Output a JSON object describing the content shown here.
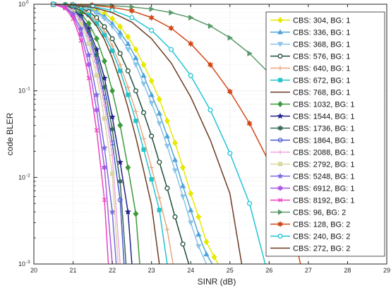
{
  "chart_data": {
    "type": "line",
    "xlabel": "SINR (dB)",
    "ylabel": "code BLER",
    "xlim": [
      20,
      29
    ],
    "ylim": [
      0.001,
      1
    ],
    "yscale": "log",
    "grid": true,
    "legend_position": "right",
    "x_ticks": [
      20,
      21,
      22,
      23,
      24,
      25,
      26,
      27,
      28,
      29
    ],
    "x_tick_labels": [
      "20",
      "21",
      "22",
      "23",
      "24",
      "25",
      "26",
      "27",
      "28",
      "29"
    ],
    "y_ticks": [
      0.001,
      0.01,
      0.1,
      1
    ],
    "y_tick_labels": [
      [
        "10",
        "-3"
      ],
      [
        "10",
        "-2"
      ],
      [
        "10",
        "-1"
      ],
      [
        "10",
        "0"
      ]
    ],
    "series": [
      {
        "name": "CBS: 304, BG: 1",
        "color": "#e8e800",
        "marker": "diamond",
        "x": [
          20.5,
          20.8,
          21.0,
          21.2,
          21.4,
          21.6,
          21.8,
          22.0,
          22.2,
          22.4,
          22.6,
          22.8,
          23.0,
          23.2,
          23.4,
          23.6,
          23.8,
          24.0,
          24.2,
          24.4,
          24.6,
          24.7
        ],
        "y": [
          1,
          0.99,
          0.97,
          0.95,
          0.9,
          0.85,
          0.78,
          0.68,
          0.55,
          0.42,
          0.3,
          0.2,
          0.13,
          0.08,
          0.045,
          0.025,
          0.013,
          0.0065,
          0.0035,
          0.0018,
          0.0012,
          0.001
        ]
      },
      {
        "name": "CBS: 336, BG: 1",
        "color": "#4fa3d9",
        "marker": "triangle-up",
        "x": [
          20.5,
          20.8,
          21.0,
          21.2,
          21.4,
          21.6,
          21.8,
          22.0,
          22.2,
          22.4,
          22.6,
          22.8,
          23.0,
          23.2,
          23.4,
          23.6,
          23.8,
          24.0,
          24.2,
          24.4,
          24.55
        ],
        "y": [
          1,
          0.99,
          0.97,
          0.94,
          0.88,
          0.82,
          0.72,
          0.6,
          0.47,
          0.35,
          0.24,
          0.15,
          0.09,
          0.055,
          0.03,
          0.016,
          0.008,
          0.0042,
          0.0022,
          0.0013,
          0.001
        ]
      },
      {
        "name": "CBS: 368, BG: 1",
        "color": "#88c4e8",
        "marker": "triangle-down",
        "x": [
          20.5,
          20.8,
          21.0,
          21.2,
          21.4,
          21.6,
          21.8,
          22.0,
          22.2,
          22.4,
          22.6,
          22.8,
          23.0,
          23.2,
          23.4,
          23.6,
          23.8,
          24.0,
          24.2,
          24.4
        ],
        "y": [
          1,
          0.99,
          0.96,
          0.93,
          0.87,
          0.79,
          0.68,
          0.55,
          0.42,
          0.3,
          0.2,
          0.12,
          0.072,
          0.042,
          0.023,
          0.012,
          0.006,
          0.003,
          0.0016,
          0.001
        ]
      },
      {
        "name": "CBS: 576, BG: 1",
        "color": "#1f4d3a",
        "marker": "circle",
        "x": [
          20.5,
          20.8,
          21.0,
          21.2,
          21.4,
          21.6,
          21.8,
          22.0,
          22.2,
          22.4,
          22.6,
          22.8,
          23.0,
          23.2,
          23.4,
          23.6,
          23.8,
          23.95
        ],
        "y": [
          1,
          0.98,
          0.95,
          0.9,
          0.82,
          0.7,
          0.55,
          0.4,
          0.27,
          0.17,
          0.1,
          0.056,
          0.03,
          0.015,
          0.0075,
          0.0035,
          0.0017,
          0.001
        ]
      },
      {
        "name": "CBS: 640, BG: 1",
        "color": "#e8a882",
        "marker": "plus",
        "x": [
          20.5,
          20.8,
          21.0,
          21.2,
          21.4,
          21.6,
          21.8,
          22.0,
          22.2,
          22.4,
          22.6,
          22.8,
          23.0,
          23.2,
          23.4,
          23.55
        ],
        "y": [
          1,
          0.98,
          0.94,
          0.88,
          0.78,
          0.64,
          0.48,
          0.33,
          0.2,
          0.11,
          0.058,
          0.028,
          0.013,
          0.0058,
          0.0025,
          0.001
        ]
      },
      {
        "name": "CBS: 672, BG: 1",
        "color": "#22c4cc",
        "marker": "square",
        "x": [
          20.5,
          20.8,
          21.0,
          21.2,
          21.4,
          21.6,
          21.8,
          22.0,
          22.2,
          22.4,
          22.6,
          22.8,
          23.0,
          23.2,
          23.4
        ],
        "y": [
          1,
          0.98,
          0.93,
          0.86,
          0.75,
          0.6,
          0.44,
          0.29,
          0.17,
          0.09,
          0.045,
          0.021,
          0.0095,
          0.0042,
          0.001
        ]
      },
      {
        "name": "CBS: 768, BG: 1",
        "color": "#6b3a22",
        "marker": "none",
        "x": [
          20.5,
          20.8,
          21.0,
          21.2,
          21.4,
          21.6,
          21.8,
          22.0,
          22.2,
          22.4,
          22.6,
          22.8,
          23.0,
          23.2
        ],
        "y": [
          1,
          0.97,
          0.92,
          0.84,
          0.72,
          0.56,
          0.39,
          0.24,
          0.13,
          0.064,
          0.029,
          0.012,
          0.0048,
          0.001
        ]
      },
      {
        "name": "CBS: 1032, BG: 1",
        "color": "#3c9a3c",
        "marker": "diamond",
        "x": [
          20.5,
          20.8,
          21.0,
          21.2,
          21.4,
          21.6,
          21.8,
          22.0,
          22.2,
          22.4,
          22.6,
          22.7
        ],
        "y": [
          1,
          0.97,
          0.9,
          0.78,
          0.6,
          0.4,
          0.22,
          0.1,
          0.04,
          0.013,
          0.0038,
          0.001
        ]
      },
      {
        "name": "CBS: 1544, BG: 1",
        "color": "#22228c",
        "marker": "star",
        "x": [
          20.5,
          20.8,
          21.0,
          21.2,
          21.4,
          21.6,
          21.8,
          22.0,
          22.2,
          22.4,
          22.5
        ],
        "y": [
          1,
          0.96,
          0.88,
          0.73,
          0.52,
          0.3,
          0.14,
          0.05,
          0.015,
          0.004,
          0.001
        ]
      },
      {
        "name": "CBS: 1736, BG: 1",
        "color": "#3a6b5a",
        "marker": "hexagram",
        "x": [
          20.5,
          20.8,
          21.0,
          21.2,
          21.4,
          21.6,
          21.8,
          22.0,
          22.2,
          22.35
        ],
        "y": [
          1,
          0.96,
          0.87,
          0.7,
          0.48,
          0.26,
          0.11,
          0.036,
          0.009,
          0.001
        ]
      },
      {
        "name": "CBS: 1864, BG: 1",
        "color": "#4a5ad0",
        "marker": "circle-open",
        "x": [
          20.5,
          20.8,
          21.0,
          21.2,
          21.4,
          21.6,
          21.8,
          22.0,
          22.2,
          22.3
        ],
        "y": [
          1,
          0.95,
          0.86,
          0.68,
          0.44,
          0.22,
          0.085,
          0.025,
          0.0055,
          0.001
        ]
      },
      {
        "name": "CBS: 2088, BG: 1",
        "color": "#f0a8e0",
        "marker": "plus",
        "x": [
          20.5,
          20.8,
          21.0,
          21.2,
          21.4,
          21.6,
          21.8,
          22.0,
          22.2
        ],
        "y": [
          1,
          0.95,
          0.85,
          0.65,
          0.4,
          0.19,
          0.068,
          0.018,
          0.001
        ]
      },
      {
        "name": "CBS: 2792, BG: 1",
        "color": "#d8d8a0",
        "marker": "square",
        "x": [
          20.5,
          20.8,
          21.0,
          21.2,
          21.4,
          21.6,
          21.8,
          22.0,
          22.15
        ],
        "y": [
          1,
          0.94,
          0.82,
          0.6,
          0.35,
          0.15,
          0.048,
          0.011,
          0.001
        ]
      },
      {
        "name": "CBS: 5248, BG: 1",
        "color": "#7a6ae0",
        "marker": "star",
        "x": [
          20.5,
          20.8,
          21.0,
          21.2,
          21.4,
          21.6,
          21.8,
          22.0,
          22.1
        ],
        "y": [
          1,
          0.93,
          0.78,
          0.52,
          0.26,
          0.09,
          0.022,
          0.004,
          0.001
        ]
      },
      {
        "name": "CBS: 6912, BG: 1",
        "color": "#a85ae0",
        "marker": "hexagram",
        "x": [
          20.5,
          20.8,
          21.0,
          21.2,
          21.4,
          21.6,
          21.8,
          22.0
        ],
        "y": [
          1,
          0.92,
          0.74,
          0.45,
          0.2,
          0.06,
          0.013,
          0.001
        ]
      },
      {
        "name": "CBS: 8192, BG: 1",
        "color": "#f040c0",
        "marker": "x",
        "x": [
          20.5,
          20.8,
          21.0,
          21.2,
          21.4,
          21.6,
          21.8,
          21.9
        ],
        "y": [
          1,
          0.9,
          0.68,
          0.38,
          0.14,
          0.035,
          0.0055,
          0.001
        ]
      },
      {
        "name": "CBS: 96, BG: 2",
        "color": "#5a9a6a",
        "marker": "triangle-right",
        "x": [
          20.5,
          21.0,
          21.5,
          22.0,
          22.5,
          23.0,
          23.5,
          24.0,
          24.5,
          25.0,
          25.5,
          26.0,
          26.5,
          27.0,
          27.5,
          28.0,
          28.3
        ],
        "y": [
          1,
          0.99,
          0.98,
          0.96,
          0.93,
          0.88,
          0.8,
          0.7,
          0.56,
          0.41,
          0.27,
          0.16,
          0.085,
          0.04,
          0.017,
          0.0065,
          0.0035
        ]
      },
      {
        "name": "CBS: 128, BG: 2",
        "color": "#d04a1a",
        "marker": "hexagram",
        "x": [
          20.5,
          21.0,
          21.5,
          22.0,
          22.5,
          23.0,
          23.5,
          24.0,
          24.5,
          25.0,
          25.5,
          26.0,
          26.5,
          26.8
        ],
        "y": [
          1,
          0.99,
          0.97,
          0.92,
          0.84,
          0.7,
          0.53,
          0.35,
          0.2,
          0.098,
          0.042,
          0.015,
          0.004,
          0.001
        ]
      },
      {
        "name": "CBS: 240, BG: 2",
        "color": "#22c4d8",
        "marker": "circle",
        "x": [
          20.5,
          21.0,
          21.5,
          22.0,
          22.5,
          23.0,
          23.5,
          24.0,
          24.5,
          25.0,
          25.5,
          25.9
        ],
        "y": [
          1,
          0.98,
          0.94,
          0.85,
          0.7,
          0.5,
          0.3,
          0.15,
          0.06,
          0.019,
          0.005,
          0.001
        ]
      },
      {
        "name": "CBS: 272, BG: 2",
        "color": "#6b3a22",
        "marker": "none",
        "x": [
          20.5,
          21.0,
          21.5,
          22.0,
          22.5,
          23.0,
          23.5,
          24.0,
          24.5,
          25.0,
          25.3
        ],
        "y": [
          1,
          0.98,
          0.92,
          0.8,
          0.62,
          0.4,
          0.21,
          0.085,
          0.027,
          0.0065,
          0.001
        ]
      }
    ]
  }
}
